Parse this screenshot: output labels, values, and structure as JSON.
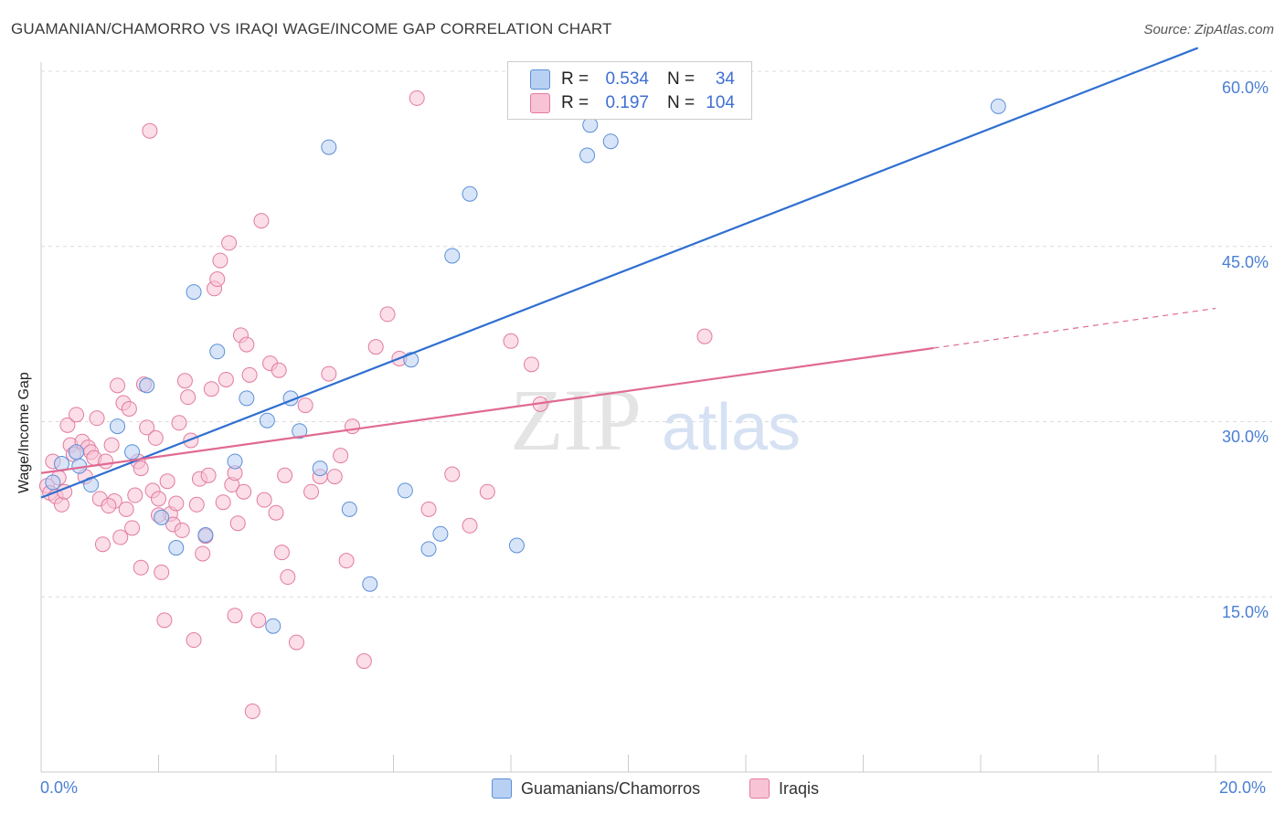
{
  "title": "GUAMANIAN/CHAMORRO VS IRAQI WAGE/INCOME GAP CORRELATION CHART",
  "source": "Source: ZipAtlas.com",
  "watermark": {
    "zip": "ZIP",
    "atlas": "atlas"
  },
  "legend": {
    "r_label": "R =",
    "n_label": "N =",
    "rows": [
      {
        "name": "Guamanians/Chamorros",
        "r": "0.534",
        "n": "34"
      },
      {
        "name": "Iraqis",
        "r": "0.197",
        "n": "104"
      }
    ]
  },
  "bottom_legend": [
    "Guamanians/Chamorros",
    "Iraqis"
  ],
  "colors": {
    "blue_fill": "#b8d0f2",
    "blue_stroke": "#5b8fd9",
    "blue_line": "#2f6fd0",
    "pink_fill": "#f8c3d5",
    "pink_stroke": "#e27ba0",
    "pink_line": "#e06a92",
    "grid": "#dcdcdc",
    "tick": "#4a7fd4"
  },
  "chart_data": {
    "type": "scatter",
    "title": "GUAMANIAN/CHAMORRO VS IRAQI WAGE/INCOME GAP CORRELATION CHART",
    "xlabel": "",
    "ylabel": "Wage/Income Gap",
    "xlim": [
      0,
      20
    ],
    "ylim": [
      0,
      60
    ],
    "x_tick_labels": [
      "0.0%",
      "20.0%"
    ],
    "y_ticks": [
      15,
      30,
      45,
      60
    ],
    "y_tick_labels": [
      "15.0%",
      "30.0%",
      "45.0%",
      "60.0%"
    ],
    "series": [
      {
        "name": "Guamanians/Chamorros",
        "r": 0.534,
        "n": 34,
        "trend": {
          "x": [
            0,
            19.7
          ],
          "y": [
            23.5,
            62.0
          ],
          "dashed_to": null
        },
        "points": [
          [
            0.2,
            24.8
          ],
          [
            0.35,
            26.4
          ],
          [
            0.6,
            27.4
          ],
          [
            0.65,
            26.2
          ],
          [
            0.85,
            24.6
          ],
          [
            1.3,
            29.6
          ],
          [
            1.55,
            27.4
          ],
          [
            1.8,
            33.1
          ],
          [
            2.05,
            21.8
          ],
          [
            2.3,
            19.2
          ],
          [
            2.6,
            41.1
          ],
          [
            2.8,
            20.3
          ],
          [
            3.0,
            36.0
          ],
          [
            3.3,
            26.6
          ],
          [
            3.5,
            32.0
          ],
          [
            3.85,
            30.1
          ],
          [
            3.95,
            12.5
          ],
          [
            4.25,
            32.0
          ],
          [
            4.4,
            29.2
          ],
          [
            4.75,
            26.0
          ],
          [
            4.9,
            53.5
          ],
          [
            5.25,
            22.5
          ],
          [
            5.6,
            16.1
          ],
          [
            6.2,
            24.1
          ],
          [
            6.3,
            35.3
          ],
          [
            6.6,
            19.1
          ],
          [
            6.8,
            20.4
          ],
          [
            7.0,
            44.2
          ],
          [
            7.3,
            49.5
          ],
          [
            8.1,
            19.4
          ],
          [
            9.3,
            52.8
          ],
          [
            9.35,
            55.4
          ],
          [
            9.7,
            54.0
          ],
          [
            16.3,
            57.0
          ]
        ]
      },
      {
        "name": "Iraqis",
        "r": 0.197,
        "n": 104,
        "trend": {
          "x": [
            0,
            15.2
          ],
          "y": [
            25.6,
            36.3
          ],
          "dashed_to": {
            "x": 20.0,
            "y": 39.7
          }
        },
        "points": [
          [
            0.1,
            24.5
          ],
          [
            0.15,
            23.9
          ],
          [
            0.2,
            26.6
          ],
          [
            0.25,
            23.6
          ],
          [
            0.3,
            25.2
          ],
          [
            0.35,
            22.9
          ],
          [
            0.45,
            29.7
          ],
          [
            0.5,
            28.0
          ],
          [
            0.55,
            27.2
          ],
          [
            0.6,
            30.6
          ],
          [
            0.7,
            28.3
          ],
          [
            0.75,
            25.3
          ],
          [
            0.8,
            27.8
          ],
          [
            0.85,
            27.4
          ],
          [
            0.9,
            26.9
          ],
          [
            0.95,
            30.3
          ],
          [
            1.0,
            23.4
          ],
          [
            1.05,
            19.5
          ],
          [
            1.1,
            26.6
          ],
          [
            1.2,
            28.0
          ],
          [
            1.25,
            23.2
          ],
          [
            1.3,
            33.1
          ],
          [
            1.4,
            31.6
          ],
          [
            1.45,
            22.5
          ],
          [
            1.5,
            31.1
          ],
          [
            1.55,
            20.9
          ],
          [
            1.6,
            23.7
          ],
          [
            1.65,
            26.6
          ],
          [
            1.7,
            17.5
          ],
          [
            1.75,
            33.2
          ],
          [
            1.8,
            29.5
          ],
          [
            1.85,
            54.9
          ],
          [
            1.9,
            24.1
          ],
          [
            1.95,
            28.6
          ],
          [
            2.0,
            23.4
          ],
          [
            2.05,
            17.1
          ],
          [
            2.1,
            13.0
          ],
          [
            2.15,
            24.9
          ],
          [
            2.2,
            22.1
          ],
          [
            2.25,
            21.2
          ],
          [
            2.3,
            23.0
          ],
          [
            2.35,
            29.9
          ],
          [
            2.4,
            20.7
          ],
          [
            2.45,
            33.5
          ],
          [
            2.5,
            32.1
          ],
          [
            2.55,
            28.4
          ],
          [
            2.6,
            11.3
          ],
          [
            2.65,
            22.9
          ],
          [
            2.7,
            25.1
          ],
          [
            2.75,
            18.7
          ],
          [
            2.8,
            20.2
          ],
          [
            2.85,
            25.4
          ],
          [
            2.9,
            32.8
          ],
          [
            2.95,
            41.4
          ],
          [
            3.0,
            42.2
          ],
          [
            3.05,
            43.8
          ],
          [
            3.1,
            23.1
          ],
          [
            3.15,
            33.6
          ],
          [
            3.2,
            45.3
          ],
          [
            3.25,
            24.6
          ],
          [
            3.3,
            13.4
          ],
          [
            3.35,
            21.3
          ],
          [
            3.4,
            37.4
          ],
          [
            3.45,
            24.0
          ],
          [
            3.5,
            36.6
          ],
          [
            3.55,
            34.0
          ],
          [
            3.6,
            5.2
          ],
          [
            3.7,
            13.0
          ],
          [
            3.75,
            47.2
          ],
          [
            3.8,
            23.3
          ],
          [
            3.9,
            35.0
          ],
          [
            4.0,
            22.2
          ],
          [
            4.05,
            34.4
          ],
          [
            4.1,
            18.8
          ],
          [
            4.15,
            25.4
          ],
          [
            4.2,
            16.7
          ],
          [
            4.35,
            11.1
          ],
          [
            4.5,
            31.4
          ],
          [
            4.6,
            24.0
          ],
          [
            4.75,
            25.3
          ],
          [
            4.9,
            34.1
          ],
          [
            5.0,
            25.3
          ],
          [
            5.1,
            27.1
          ],
          [
            5.2,
            18.1
          ],
          [
            5.3,
            29.6
          ],
          [
            5.5,
            9.5
          ],
          [
            5.7,
            36.4
          ],
          [
            5.9,
            39.2
          ],
          [
            6.1,
            35.4
          ],
          [
            6.4,
            57.7
          ],
          [
            6.6,
            22.5
          ],
          [
            7.0,
            25.5
          ],
          [
            7.3,
            21.1
          ],
          [
            7.6,
            24.0
          ],
          [
            8.0,
            36.9
          ],
          [
            8.35,
            34.9
          ],
          [
            8.5,
            31.5
          ],
          [
            11.3,
            37.3
          ],
          [
            1.15,
            22.8
          ],
          [
            1.35,
            20.1
          ],
          [
            2.0,
            22.0
          ],
          [
            3.3,
            25.6
          ],
          [
            1.7,
            26.0
          ],
          [
            0.4,
            24.0
          ]
        ]
      }
    ]
  }
}
